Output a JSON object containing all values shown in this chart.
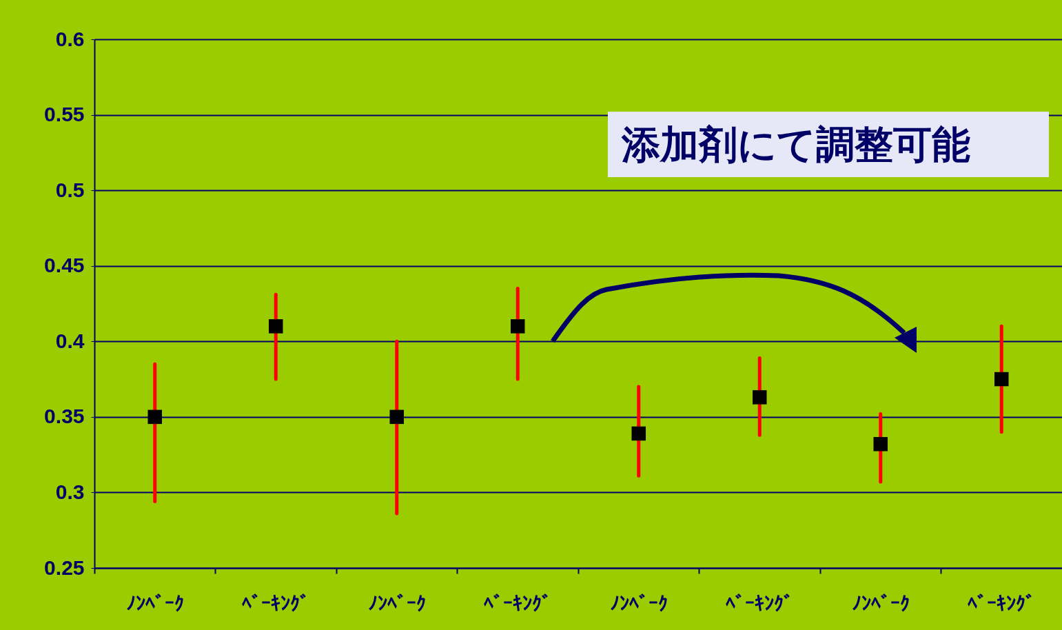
{
  "chart_data": {
    "type": "scatter",
    "categories": [
      "ﾉﾝﾍﾞｰｸ",
      "ﾍﾞｰｷﾝｸﾞ",
      "ﾉﾝﾍﾞｰｸ",
      "ﾍﾞｰｷﾝｸﾞ",
      "ﾉﾝﾍﾞｰｸ",
      "ﾍﾞｰｷﾝｸﾞ",
      "ﾉﾝﾍﾞｰｸ",
      "ﾍﾞｰｷﾝｸﾞ"
    ],
    "series": [
      {
        "color": "#000000",
        "values": [
          0.35,
          0.41,
          0.35,
          0.41,
          0.339,
          0.363,
          0.332,
          0.375
        ],
        "errors": [
          [
            0.294,
            0.385
          ],
          [
            0.375,
            0.431
          ],
          [
            0.286,
            0.4
          ],
          [
            0.375,
            0.435
          ],
          [
            0.311,
            0.37
          ],
          [
            0.338,
            0.389
          ],
          [
            0.307,
            0.352
          ],
          [
            0.34,
            0.41
          ]
        ]
      }
    ],
    "ylim": [
      0.25,
      0.6
    ],
    "yticks": [
      0.25,
      0.3,
      0.35,
      0.4,
      0.45,
      0.5,
      0.55,
      0.6
    ],
    "grid": "y",
    "marker": "square",
    "annotations": [
      "添加剤にて調整可能"
    ]
  }
}
